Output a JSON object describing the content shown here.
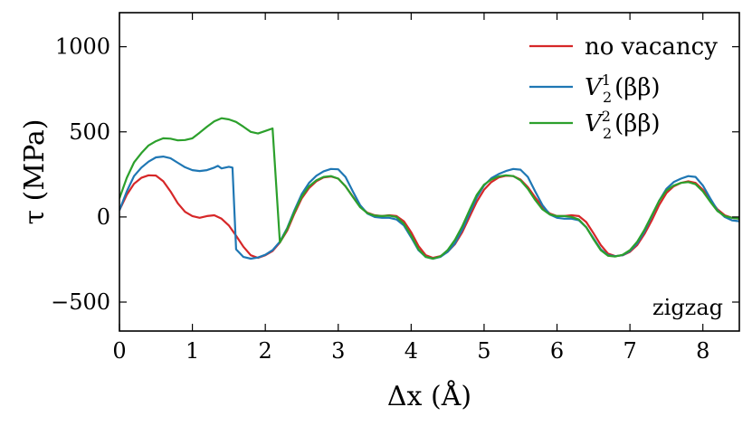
{
  "chart_data": {
    "type": "line",
    "xlabel": "Δx (Å)",
    "ylabel": "τ (MPa)",
    "xlim": [
      0,
      8.5
    ],
    "ylim": [
      -670,
      1200
    ],
    "xticks": [
      0,
      1,
      2,
      3,
      4,
      5,
      6,
      7,
      8
    ],
    "yticks": [
      -500,
      0,
      500,
      1000
    ],
    "ytick_labels": [
      "−500",
      "0",
      "500",
      "1000"
    ],
    "grid": false,
    "legend_position": "top-right",
    "annotation": "zigzag",
    "series": [
      {
        "name": "no vacancy",
        "color": "#d62728",
        "points": [
          [
            0,
            40
          ],
          [
            0.1,
            130
          ],
          [
            0.2,
            195
          ],
          [
            0.3,
            230
          ],
          [
            0.4,
            245
          ],
          [
            0.5,
            243
          ],
          [
            0.6,
            210
          ],
          [
            0.7,
            150
          ],
          [
            0.8,
            80
          ],
          [
            0.9,
            30
          ],
          [
            1.0,
            5
          ],
          [
            1.1,
            -5
          ],
          [
            1.2,
            5
          ],
          [
            1.3,
            10
          ],
          [
            1.4,
            -10
          ],
          [
            1.5,
            -50
          ],
          [
            1.6,
            -110
          ],
          [
            1.7,
            -175
          ],
          [
            1.8,
            -225
          ],
          [
            1.9,
            -240
          ],
          [
            2.0,
            -225
          ],
          [
            2.1,
            -200
          ],
          [
            2.2,
            -150
          ],
          [
            2.3,
            -80
          ],
          [
            2.4,
            20
          ],
          [
            2.5,
            110
          ],
          [
            2.6,
            170
          ],
          [
            2.7,
            210
          ],
          [
            2.8,
            232
          ],
          [
            2.9,
            238
          ],
          [
            3.0,
            225
          ],
          [
            3.1,
            180
          ],
          [
            3.2,
            120
          ],
          [
            3.3,
            60
          ],
          [
            3.4,
            25
          ],
          [
            3.5,
            10
          ],
          [
            3.6,
            5
          ],
          [
            3.7,
            10
          ],
          [
            3.8,
            5
          ],
          [
            3.9,
            -25
          ],
          [
            4.0,
            -90
          ],
          [
            4.1,
            -170
          ],
          [
            4.2,
            -225
          ],
          [
            4.3,
            -240
          ],
          [
            4.4,
            -230
          ],
          [
            4.5,
            -205
          ],
          [
            4.6,
            -160
          ],
          [
            4.7,
            -90
          ],
          [
            4.8,
            0
          ],
          [
            4.9,
            90
          ],
          [
            5.0,
            160
          ],
          [
            5.1,
            205
          ],
          [
            5.2,
            232
          ],
          [
            5.3,
            242
          ],
          [
            5.4,
            240
          ],
          [
            5.5,
            220
          ],
          [
            5.6,
            175
          ],
          [
            5.7,
            115
          ],
          [
            5.8,
            60
          ],
          [
            5.9,
            20
          ],
          [
            6.0,
            5
          ],
          [
            6.1,
            5
          ],
          [
            6.2,
            10
          ],
          [
            6.3,
            5
          ],
          [
            6.4,
            -30
          ],
          [
            6.5,
            -95
          ],
          [
            6.6,
            -165
          ],
          [
            6.7,
            -215
          ],
          [
            6.8,
            -230
          ],
          [
            6.9,
            -225
          ],
          [
            7.0,
            -205
          ],
          [
            7.1,
            -165
          ],
          [
            7.2,
            -100
          ],
          [
            7.3,
            -20
          ],
          [
            7.4,
            70
          ],
          [
            7.5,
            140
          ],
          [
            7.6,
            180
          ],
          [
            7.7,
            200
          ],
          [
            7.8,
            210
          ],
          [
            7.9,
            200
          ],
          [
            8.0,
            160
          ],
          [
            8.1,
            100
          ],
          [
            8.2,
            45
          ],
          [
            8.3,
            10
          ],
          [
            8.4,
            -5
          ],
          [
            8.5,
            -10
          ]
        ]
      },
      {
        "name": "V",
        "name_superscript": "1",
        "name_subscript": "2",
        "name_suffix": "(ββ)",
        "color": "#1f77b4",
        "points": [
          [
            0,
            40
          ],
          [
            0.1,
            150
          ],
          [
            0.2,
            240
          ],
          [
            0.3,
            290
          ],
          [
            0.4,
            325
          ],
          [
            0.5,
            350
          ],
          [
            0.6,
            355
          ],
          [
            0.7,
            345
          ],
          [
            0.8,
            318
          ],
          [
            0.9,
            292
          ],
          [
            1.0,
            275
          ],
          [
            1.1,
            270
          ],
          [
            1.2,
            275
          ],
          [
            1.3,
            290
          ],
          [
            1.35,
            300
          ],
          [
            1.4,
            285
          ],
          [
            1.5,
            295
          ],
          [
            1.55,
            290
          ],
          [
            1.6,
            -190
          ],
          [
            1.7,
            -235
          ],
          [
            1.8,
            -245
          ],
          [
            1.9,
            -238
          ],
          [
            2.0,
            -222
          ],
          [
            2.1,
            -195
          ],
          [
            2.2,
            -145
          ],
          [
            2.3,
            -65
          ],
          [
            2.4,
            40
          ],
          [
            2.5,
            135
          ],
          [
            2.6,
            200
          ],
          [
            2.7,
            242
          ],
          [
            2.8,
            268
          ],
          [
            2.9,
            282
          ],
          [
            3.0,
            280
          ],
          [
            3.1,
            235
          ],
          [
            3.2,
            150
          ],
          [
            3.3,
            70
          ],
          [
            3.4,
            20
          ],
          [
            3.5,
            0
          ],
          [
            3.6,
            -5
          ],
          [
            3.7,
            -5
          ],
          [
            3.8,
            -15
          ],
          [
            3.9,
            -50
          ],
          [
            4.0,
            -120
          ],
          [
            4.1,
            -195
          ],
          [
            4.2,
            -235
          ],
          [
            4.3,
            -245
          ],
          [
            4.4,
            -235
          ],
          [
            4.5,
            -205
          ],
          [
            4.6,
            -155
          ],
          [
            4.7,
            -75
          ],
          [
            4.8,
            20
          ],
          [
            4.9,
            115
          ],
          [
            5.0,
            185
          ],
          [
            5.1,
            228
          ],
          [
            5.2,
            252
          ],
          [
            5.3,
            270
          ],
          [
            5.4,
            282
          ],
          [
            5.5,
            278
          ],
          [
            5.6,
            235
          ],
          [
            5.7,
            150
          ],
          [
            5.8,
            70
          ],
          [
            5.9,
            15
          ],
          [
            6.0,
            -5
          ],
          [
            6.1,
            -10
          ],
          [
            6.2,
            -10
          ],
          [
            6.3,
            -20
          ],
          [
            6.4,
            -60
          ],
          [
            6.5,
            -125
          ],
          [
            6.6,
            -190
          ],
          [
            6.7,
            -225
          ],
          [
            6.8,
            -230
          ],
          [
            6.9,
            -225
          ],
          [
            7.0,
            -200
          ],
          [
            7.1,
            -155
          ],
          [
            7.2,
            -85
          ],
          [
            7.3,
            5
          ],
          [
            7.4,
            95
          ],
          [
            7.5,
            165
          ],
          [
            7.6,
            205
          ],
          [
            7.7,
            225
          ],
          [
            7.8,
            240
          ],
          [
            7.9,
            235
          ],
          [
            8.0,
            185
          ],
          [
            8.1,
            110
          ],
          [
            8.2,
            40
          ],
          [
            8.3,
            0
          ],
          [
            8.4,
            -20
          ],
          [
            8.5,
            -25
          ]
        ]
      },
      {
        "name": "V",
        "name_superscript": "2",
        "name_subscript": "2",
        "name_suffix": "(ββ)",
        "color": "#2ca02c",
        "points": [
          [
            0,
            110
          ],
          [
            0.1,
            230
          ],
          [
            0.2,
            320
          ],
          [
            0.3,
            375
          ],
          [
            0.4,
            420
          ],
          [
            0.5,
            445
          ],
          [
            0.6,
            462
          ],
          [
            0.7,
            460
          ],
          [
            0.8,
            450
          ],
          [
            0.9,
            452
          ],
          [
            1.0,
            462
          ],
          [
            1.1,
            495
          ],
          [
            1.2,
            530
          ],
          [
            1.3,
            562
          ],
          [
            1.4,
            580
          ],
          [
            1.5,
            573
          ],
          [
            1.6,
            558
          ],
          [
            1.7,
            530
          ],
          [
            1.8,
            500
          ],
          [
            1.9,
            490
          ],
          [
            2.0,
            505
          ],
          [
            2.1,
            520
          ],
          [
            2.2,
            -150
          ],
          [
            2.3,
            -70
          ],
          [
            2.4,
            30
          ],
          [
            2.5,
            120
          ],
          [
            2.6,
            180
          ],
          [
            2.7,
            215
          ],
          [
            2.8,
            235
          ],
          [
            2.9,
            240
          ],
          [
            3.0,
            225
          ],
          [
            3.1,
            180
          ],
          [
            3.2,
            118
          ],
          [
            3.3,
            58
          ],
          [
            3.4,
            22
          ],
          [
            3.5,
            8
          ],
          [
            3.6,
            5
          ],
          [
            3.7,
            8
          ],
          [
            3.8,
            0
          ],
          [
            3.9,
            -40
          ],
          [
            4.0,
            -110
          ],
          [
            4.1,
            -190
          ],
          [
            4.2,
            -235
          ],
          [
            4.3,
            -245
          ],
          [
            4.4,
            -232
          ],
          [
            4.5,
            -195
          ],
          [
            4.6,
            -135
          ],
          [
            4.7,
            -55
          ],
          [
            4.8,
            40
          ],
          [
            4.9,
            130
          ],
          [
            5.0,
            190
          ],
          [
            5.1,
            220
          ],
          [
            5.2,
            238
          ],
          [
            5.3,
            245
          ],
          [
            5.4,
            240
          ],
          [
            5.5,
            215
          ],
          [
            5.6,
            165
          ],
          [
            5.7,
            100
          ],
          [
            5.8,
            45
          ],
          [
            5.9,
            15
          ],
          [
            6.0,
            5
          ],
          [
            6.1,
            5
          ],
          [
            6.2,
            0
          ],
          [
            6.3,
            -15
          ],
          [
            6.4,
            -60
          ],
          [
            6.5,
            -130
          ],
          [
            6.6,
            -195
          ],
          [
            6.7,
            -228
          ],
          [
            6.8,
            -232
          ],
          [
            6.9,
            -222
          ],
          [
            7.0,
            -195
          ],
          [
            7.1,
            -145
          ],
          [
            7.2,
            -75
          ],
          [
            7.3,
            10
          ],
          [
            7.4,
            95
          ],
          [
            7.5,
            155
          ],
          [
            7.6,
            185
          ],
          [
            7.7,
            200
          ],
          [
            7.8,
            205
          ],
          [
            7.9,
            192
          ],
          [
            8.0,
            150
          ],
          [
            8.1,
            90
          ],
          [
            8.2,
            35
          ],
          [
            8.3,
            5
          ],
          [
            8.4,
            -5
          ],
          [
            8.5,
            -10
          ]
        ]
      }
    ]
  }
}
